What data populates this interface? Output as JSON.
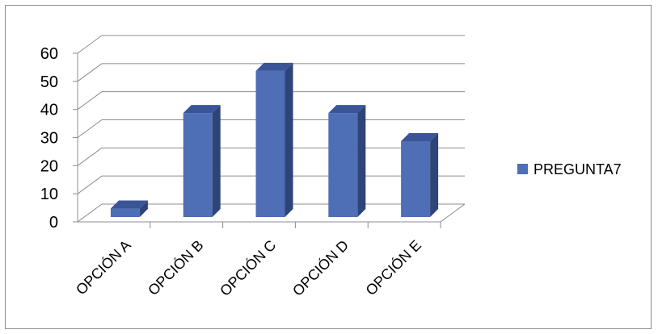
{
  "chart_data": {
    "type": "bar",
    "categories": [
      "OPCIÓN A",
      "OPCIÓN B",
      "OPCIÓN C",
      "OPCIÓN D",
      "OPCIÓN E"
    ],
    "series": [
      {
        "name": "PREGUNTA7",
        "values": [
          3,
          37,
          52,
          37,
          27
        ]
      }
    ],
    "y_ticks": [
      "0",
      "10",
      "20",
      "30",
      "40",
      "50",
      "60"
    ],
    "ylim": [
      0,
      60
    ],
    "grid": true,
    "legend_position": "right",
    "colors": {
      "bar_front": "#4e6fb5",
      "bar_side": "#2e4478",
      "bar_top": "#3a5597",
      "grid": "#8c8c8c"
    }
  }
}
